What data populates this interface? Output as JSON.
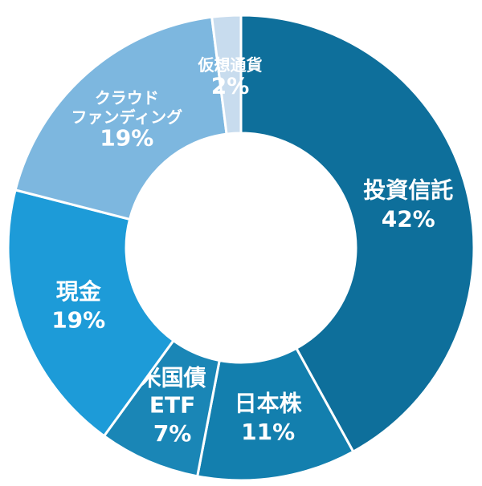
{
  "chart_data": {
    "type": "donut",
    "categories": [
      [
        "投資信託"
      ],
      [
        "日本株"
      ],
      [
        "米国債",
        "ETF"
      ],
      [
        "現金"
      ],
      [
        "クラウド",
        "ファンディング"
      ],
      [
        "仮想通貨"
      ]
    ],
    "values": [
      42,
      11,
      7,
      19,
      19,
      2
    ],
    "value_labels": [
      "42%",
      "11%",
      "7%",
      "19%",
      "19%",
      "2%"
    ],
    "colors": [
      "#0e6f9b",
      "#137fae",
      "#1a86b6",
      "#1d9bd8",
      "#7db7df",
      "#c8dcee"
    ]
  }
}
